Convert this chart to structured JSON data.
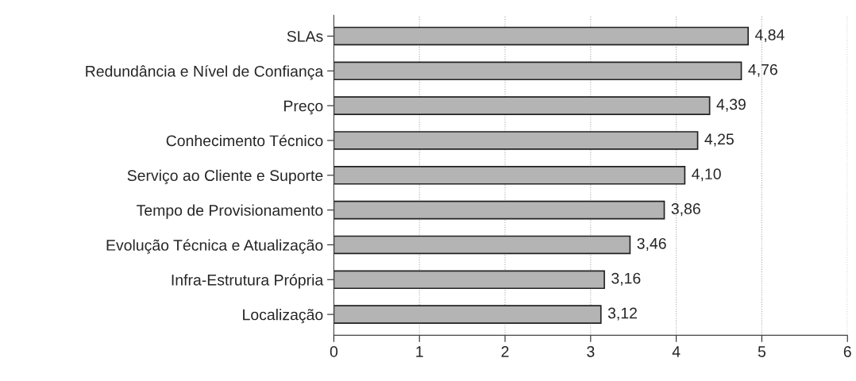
{
  "chart_data": {
    "type": "bar",
    "orientation": "horizontal",
    "categories": [
      "SLAs",
      "Redundância e Nível de Confiança",
      "Preço",
      "Conhecimento Técnico",
      "Serviço ao Cliente e Suporte",
      "Tempo de Provisionamento",
      "Evolução Técnica e Atualização",
      "Infra-Estrutura Própria",
      "Localização"
    ],
    "values": [
      4.84,
      4.76,
      4.39,
      4.25,
      4.1,
      3.86,
      3.46,
      3.16,
      3.12
    ],
    "value_labels": [
      "4,84",
      "4,76",
      "4,39",
      "4,25",
      "4,10",
      "3,86",
      "3,46",
      "3,16",
      "3,12"
    ],
    "color": "#b4b4b4",
    "xlim": [
      0,
      6
    ],
    "xticks": [
      0,
      1,
      2,
      3,
      4,
      5,
      6
    ],
    "grid": "x"
  }
}
